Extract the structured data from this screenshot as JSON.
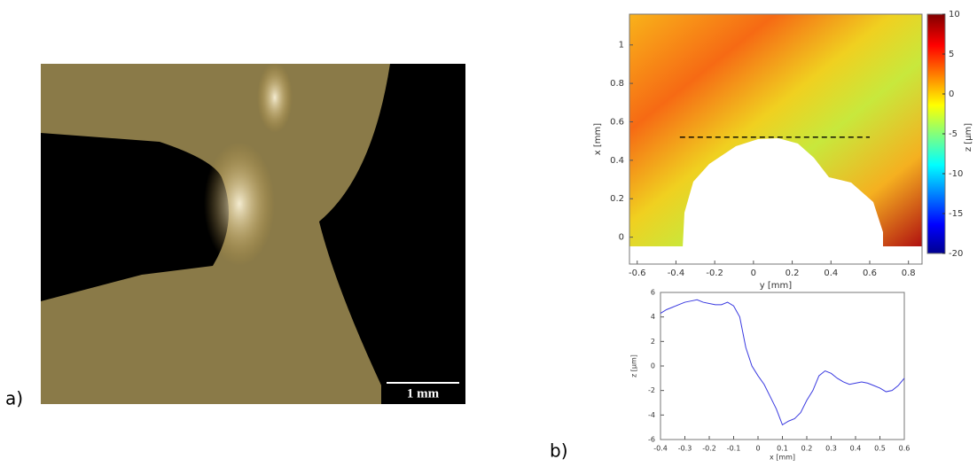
{
  "panels": {
    "a": {
      "label": "a)",
      "scale_bar": "1 mm"
    },
    "b": {
      "label": "b)"
    }
  },
  "chart_data": [
    {
      "type": "heatmap",
      "xlabel": "y [mm]",
      "ylabel": "x [mm]",
      "colorbar_label": "z [μm]",
      "xlim": [
        -0.64,
        0.87
      ],
      "xticks": [
        -0.6,
        -0.4,
        -0.2,
        0,
        0.2,
        0.4,
        0.6,
        0.8
      ],
      "ylim": [
        -0.14,
        1.16
      ],
      "yticks": [
        0,
        0.2,
        0.4,
        0.6,
        0.8,
        1
      ],
      "clim": [
        -20,
        10
      ],
      "cticks": [
        -20,
        -15,
        -10,
        -5,
        0,
        5,
        10
      ],
      "profile_line": {
        "x": [
          -0.38,
          0.6
        ],
        "y": [
          0.52,
          0.52
        ]
      }
    },
    {
      "type": "line",
      "xlabel": "x [mm]",
      "ylabel": "z [μm]",
      "color": "#3a3ae0",
      "xlim": [
        -0.4,
        0.6
      ],
      "xticks": [
        -0.4,
        -0.3,
        -0.2,
        -0.1,
        0,
        0.1,
        0.2,
        0.3,
        0.4,
        0.5,
        0.6
      ],
      "ylim": [
        -6,
        6
      ],
      "yticks": [
        -6,
        -4,
        -2,
        0,
        2,
        4,
        6
      ],
      "x": [
        -0.4,
        -0.375,
        -0.35,
        -0.325,
        -0.3,
        -0.275,
        -0.25,
        -0.225,
        -0.2,
        -0.175,
        -0.15,
        -0.125,
        -0.1,
        -0.075,
        -0.05,
        -0.025,
        0,
        0.025,
        0.05,
        0.075,
        0.1,
        0.125,
        0.15,
        0.175,
        0.2,
        0.225,
        0.25,
        0.275,
        0.3,
        0.325,
        0.35,
        0.375,
        0.4,
        0.425,
        0.45,
        0.475,
        0.5,
        0.525,
        0.55,
        0.575,
        0.6
      ],
      "values": [
        4.3,
        4.6,
        4.8,
        5.0,
        5.2,
        5.3,
        5.4,
        5.2,
        5.1,
        5.0,
        5.0,
        5.2,
        4.9,
        4.0,
        1.5,
        0.0,
        -0.8,
        -1.5,
        -2.5,
        -3.5,
        -4.8,
        -4.5,
        -4.3,
        -3.8,
        -2.8,
        -2.0,
        -0.8,
        -0.4,
        -0.6,
        -1.0,
        -1.3,
        -1.5,
        -1.4,
        -1.3,
        -1.4,
        -1.6,
        -1.8,
        -2.1,
        -2.0,
        -1.6,
        -1.0
      ]
    }
  ]
}
